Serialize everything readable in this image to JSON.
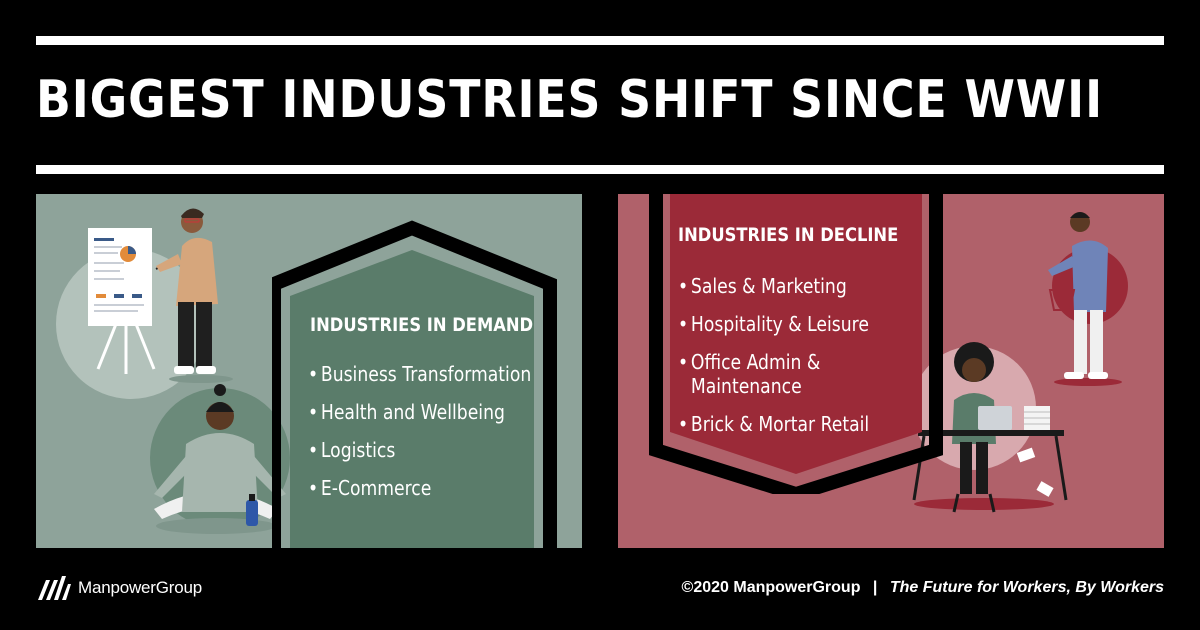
{
  "header": {
    "title": "BIGGEST INDUSTRIES SHIFT SINCE WWII"
  },
  "demand": {
    "heading": "INDUSTRIES IN DEMAND",
    "items": [
      "Business Transformation",
      "Health and Wellbeing",
      "Logistics",
      "E-Commerce"
    ]
  },
  "decline": {
    "heading": "INDUSTRIES IN DECLINE",
    "items": [
      "Sales & Marketing",
      "Hospitality & Leisure",
      "Office Admin & Maintenance",
      "Brick & Mortar Retail"
    ]
  },
  "footer": {
    "brand": "ManpowerGroup",
    "copyright": "©2020 ManpowerGroup",
    "separator": "|",
    "tagline": "The Future for Workers, By Workers"
  },
  "colors": {
    "background": "#000000",
    "demand_panel": "#8ea39a",
    "demand_card": "#5a7c6a",
    "decline_panel": "#b0616a",
    "decline_card": "#9b2a38"
  },
  "icons": [
    "presenter-illustration",
    "meditation-illustration",
    "shopper-illustration",
    "desk-worker-illustration",
    "manpowergroup-logo-icon"
  ]
}
